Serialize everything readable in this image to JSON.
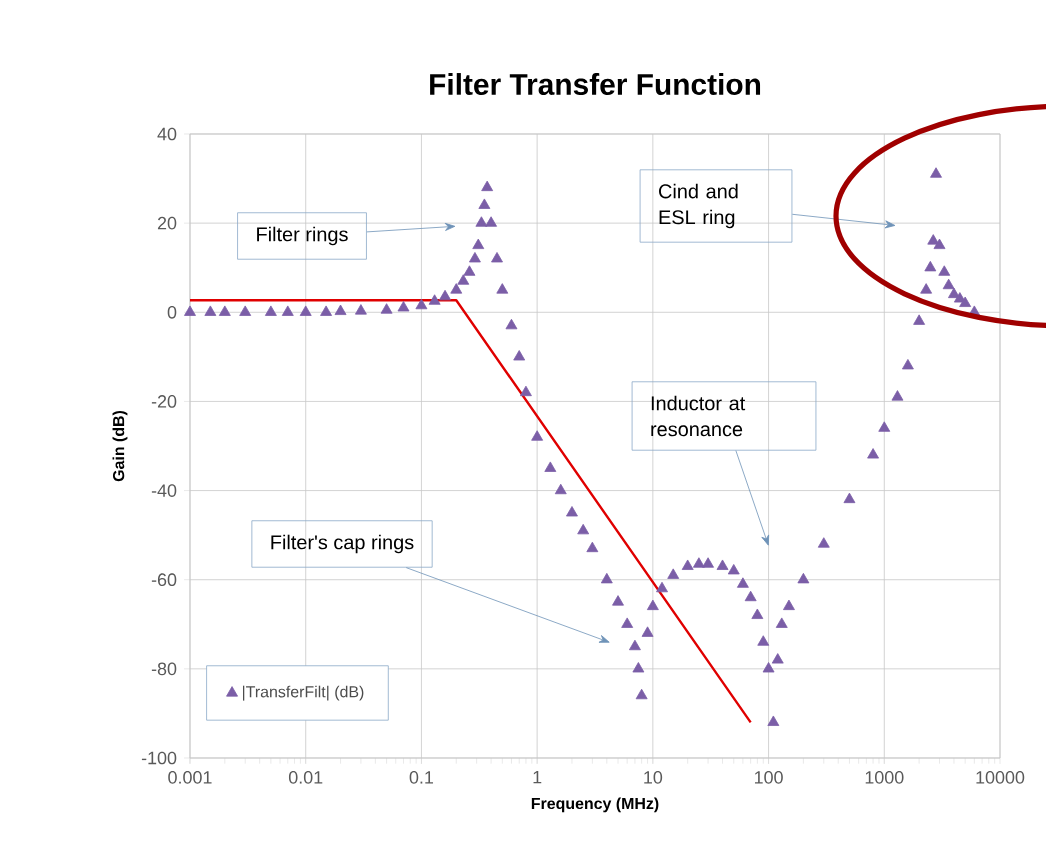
{
  "chart_data": {
    "type": "scatter",
    "title": "Filter Transfer Function",
    "xlabel": "Frequency (MHz)",
    "ylabel": "Gain (dB)",
    "log": "x",
    "xlim": [
      0.001,
      10000
    ],
    "xticks": [
      0.001,
      0.01,
      0.1,
      1,
      10,
      100,
      1000,
      10000
    ],
    "ylim": [
      -100,
      40
    ],
    "yticks": [
      -100,
      -80,
      -60,
      -40,
      -20,
      0,
      20,
      40
    ],
    "grid": true,
    "legend": "bottom left",
    "marker": "triangle",
    "annotations": [
      "Filter rings",
      "Filter's cap rings",
      "Cind and ESL ring",
      "Inductor at resonance"
    ],
    "series": [
      {
        "name": "|TransferFilt| (dB)",
        "color": "#7b5ea7",
        "x": [
          0.001,
          0.0015,
          0.002,
          0.003,
          0.005,
          0.007,
          0.01,
          0.015,
          0.02,
          0.03,
          0.05,
          0.07,
          0.1,
          0.13,
          0.16,
          0.2,
          0.23,
          0.26,
          0.29,
          0.31,
          0.33,
          0.35,
          0.37,
          0.4,
          0.45,
          0.5,
          0.6,
          0.7,
          0.8,
          1,
          1.3,
          1.6,
          2,
          2.5,
          3,
          4,
          5,
          6,
          7,
          7.5,
          8,
          9,
          10,
          12,
          15,
          20,
          25,
          30,
          40,
          50,
          60,
          70,
          80,
          90,
          100,
          110,
          120,
          130,
          150,
          200,
          300,
          500,
          800,
          1000,
          1300,
          1600,
          2000,
          2300,
          2500,
          2650,
          2800,
          3000,
          3300,
          3600,
          4000,
          4500,
          5000,
          6000
        ],
        "values": [
          0,
          0,
          0,
          0,
          0,
          0,
          0,
          0,
          0.2,
          0.3,
          0.5,
          1,
          1.5,
          2.5,
          3.5,
          5,
          7,
          9,
          12,
          15,
          20,
          24,
          28,
          20,
          12,
          5,
          -3,
          -10,
          -18,
          -28,
          -35,
          -40,
          -45,
          -49,
          -53,
          -60,
          -65,
          -70,
          -75,
          -80,
          -86,
          -72,
          -66,
          -62,
          -59,
          -57,
          -56.5,
          -56.5,
          -57,
          -58,
          -61,
          -64,
          -68,
          -74,
          -80,
          -92,
          -78,
          -70,
          -66,
          -60,
          -52,
          -42,
          -32,
          -26,
          -19,
          -12,
          -2,
          5,
          10,
          16,
          31,
          15,
          9,
          6,
          4,
          3,
          2,
          0
        ]
      },
      {
        "type": "line",
        "color": "#e00000",
        "marker": "none",
        "x": [
          0.001,
          0.2,
          70
        ],
        "values": [
          2.7,
          2.7,
          -92
        ]
      }
    ]
  }
}
